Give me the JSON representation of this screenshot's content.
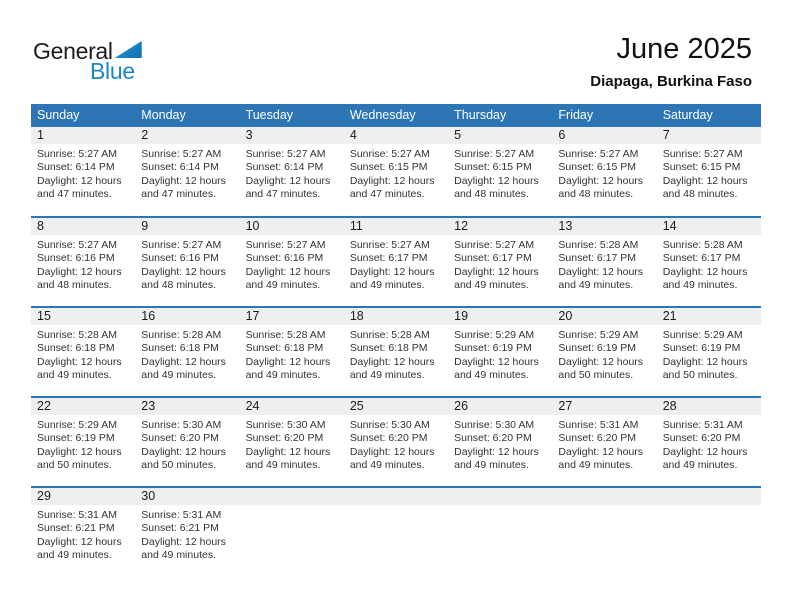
{
  "logo": {
    "part1": "General",
    "part2": "Blue"
  },
  "header": {
    "title": "June 2025",
    "subtitle": "Diapaga, Burkina Faso"
  },
  "colors": {
    "header_blue": "#2E75B6",
    "week_divider_blue": "#2E75B6",
    "day_strip_gray": "#EFEFEF",
    "logo_blue": "#1B86C8",
    "text_dark": "#1C1C1C",
    "detail_text": "#333333"
  },
  "calendar": {
    "weekdays": [
      "Sunday",
      "Monday",
      "Tuesday",
      "Wednesday",
      "Thursday",
      "Friday",
      "Saturday"
    ],
    "weeks": [
      [
        {
          "num": "1",
          "sunrise": "Sunrise: 5:27 AM",
          "sunset": "Sunset: 6:14 PM",
          "daylight1": "Daylight: 12 hours",
          "daylight2": "and 47 minutes."
        },
        {
          "num": "2",
          "sunrise": "Sunrise: 5:27 AM",
          "sunset": "Sunset: 6:14 PM",
          "daylight1": "Daylight: 12 hours",
          "daylight2": "and 47 minutes."
        },
        {
          "num": "3",
          "sunrise": "Sunrise: 5:27 AM",
          "sunset": "Sunset: 6:14 PM",
          "daylight1": "Daylight: 12 hours",
          "daylight2": "and 47 minutes."
        },
        {
          "num": "4",
          "sunrise": "Sunrise: 5:27 AM",
          "sunset": "Sunset: 6:15 PM",
          "daylight1": "Daylight: 12 hours",
          "daylight2": "and 47 minutes."
        },
        {
          "num": "5",
          "sunrise": "Sunrise: 5:27 AM",
          "sunset": "Sunset: 6:15 PM",
          "daylight1": "Daylight: 12 hours",
          "daylight2": "and 48 minutes."
        },
        {
          "num": "6",
          "sunrise": "Sunrise: 5:27 AM",
          "sunset": "Sunset: 6:15 PM",
          "daylight1": "Daylight: 12 hours",
          "daylight2": "and 48 minutes."
        },
        {
          "num": "7",
          "sunrise": "Sunrise: 5:27 AM",
          "sunset": "Sunset: 6:15 PM",
          "daylight1": "Daylight: 12 hours",
          "daylight2": "and 48 minutes."
        }
      ],
      [
        {
          "num": "8",
          "sunrise": "Sunrise: 5:27 AM",
          "sunset": "Sunset: 6:16 PM",
          "daylight1": "Daylight: 12 hours",
          "daylight2": "and 48 minutes."
        },
        {
          "num": "9",
          "sunrise": "Sunrise: 5:27 AM",
          "sunset": "Sunset: 6:16 PM",
          "daylight1": "Daylight: 12 hours",
          "daylight2": "and 48 minutes."
        },
        {
          "num": "10",
          "sunrise": "Sunrise: 5:27 AM",
          "sunset": "Sunset: 6:16 PM",
          "daylight1": "Daylight: 12 hours",
          "daylight2": "and 49 minutes."
        },
        {
          "num": "11",
          "sunrise": "Sunrise: 5:27 AM",
          "sunset": "Sunset: 6:17 PM",
          "daylight1": "Daylight: 12 hours",
          "daylight2": "and 49 minutes."
        },
        {
          "num": "12",
          "sunrise": "Sunrise: 5:27 AM",
          "sunset": "Sunset: 6:17 PM",
          "daylight1": "Daylight: 12 hours",
          "daylight2": "and 49 minutes."
        },
        {
          "num": "13",
          "sunrise": "Sunrise: 5:28 AM",
          "sunset": "Sunset: 6:17 PM",
          "daylight1": "Daylight: 12 hours",
          "daylight2": "and 49 minutes."
        },
        {
          "num": "14",
          "sunrise": "Sunrise: 5:28 AM",
          "sunset": "Sunset: 6:17 PM",
          "daylight1": "Daylight: 12 hours",
          "daylight2": "and 49 minutes."
        }
      ],
      [
        {
          "num": "15",
          "sunrise": "Sunrise: 5:28 AM",
          "sunset": "Sunset: 6:18 PM",
          "daylight1": "Daylight: 12 hours",
          "daylight2": "and 49 minutes."
        },
        {
          "num": "16",
          "sunrise": "Sunrise: 5:28 AM",
          "sunset": "Sunset: 6:18 PM",
          "daylight1": "Daylight: 12 hours",
          "daylight2": "and 49 minutes."
        },
        {
          "num": "17",
          "sunrise": "Sunrise: 5:28 AM",
          "sunset": "Sunset: 6:18 PM",
          "daylight1": "Daylight: 12 hours",
          "daylight2": "and 49 minutes."
        },
        {
          "num": "18",
          "sunrise": "Sunrise: 5:28 AM",
          "sunset": "Sunset: 6:18 PM",
          "daylight1": "Daylight: 12 hours",
          "daylight2": "and 49 minutes."
        },
        {
          "num": "19",
          "sunrise": "Sunrise: 5:29 AM",
          "sunset": "Sunset: 6:19 PM",
          "daylight1": "Daylight: 12 hours",
          "daylight2": "and 49 minutes."
        },
        {
          "num": "20",
          "sunrise": "Sunrise: 5:29 AM",
          "sunset": "Sunset: 6:19 PM",
          "daylight1": "Daylight: 12 hours",
          "daylight2": "and 50 minutes."
        },
        {
          "num": "21",
          "sunrise": "Sunrise: 5:29 AM",
          "sunset": "Sunset: 6:19 PM",
          "daylight1": "Daylight: 12 hours",
          "daylight2": "and 50 minutes."
        }
      ],
      [
        {
          "num": "22",
          "sunrise": "Sunrise: 5:29 AM",
          "sunset": "Sunset: 6:19 PM",
          "daylight1": "Daylight: 12 hours",
          "daylight2": "and 50 minutes."
        },
        {
          "num": "23",
          "sunrise": "Sunrise: 5:30 AM",
          "sunset": "Sunset: 6:20 PM",
          "daylight1": "Daylight: 12 hours",
          "daylight2": "and 50 minutes."
        },
        {
          "num": "24",
          "sunrise": "Sunrise: 5:30 AM",
          "sunset": "Sunset: 6:20 PM",
          "daylight1": "Daylight: 12 hours",
          "daylight2": "and 49 minutes."
        },
        {
          "num": "25",
          "sunrise": "Sunrise: 5:30 AM",
          "sunset": "Sunset: 6:20 PM",
          "daylight1": "Daylight: 12 hours",
          "daylight2": "and 49 minutes."
        },
        {
          "num": "26",
          "sunrise": "Sunrise: 5:30 AM",
          "sunset": "Sunset: 6:20 PM",
          "daylight1": "Daylight: 12 hours",
          "daylight2": "and 49 minutes."
        },
        {
          "num": "27",
          "sunrise": "Sunrise: 5:31 AM",
          "sunset": "Sunset: 6:20 PM",
          "daylight1": "Daylight: 12 hours",
          "daylight2": "and 49 minutes."
        },
        {
          "num": "28",
          "sunrise": "Sunrise: 5:31 AM",
          "sunset": "Sunset: 6:20 PM",
          "daylight1": "Daylight: 12 hours",
          "daylight2": "and 49 minutes."
        }
      ],
      [
        {
          "num": "29",
          "sunrise": "Sunrise: 5:31 AM",
          "sunset": "Sunset: 6:21 PM",
          "daylight1": "Daylight: 12 hours",
          "daylight2": "and 49 minutes."
        },
        {
          "num": "30",
          "sunrise": "Sunrise: 5:31 AM",
          "sunset": "Sunset: 6:21 PM",
          "daylight1": "Daylight: 12 hours",
          "daylight2": "and 49 minutes."
        },
        null,
        null,
        null,
        null,
        null
      ]
    ]
  }
}
